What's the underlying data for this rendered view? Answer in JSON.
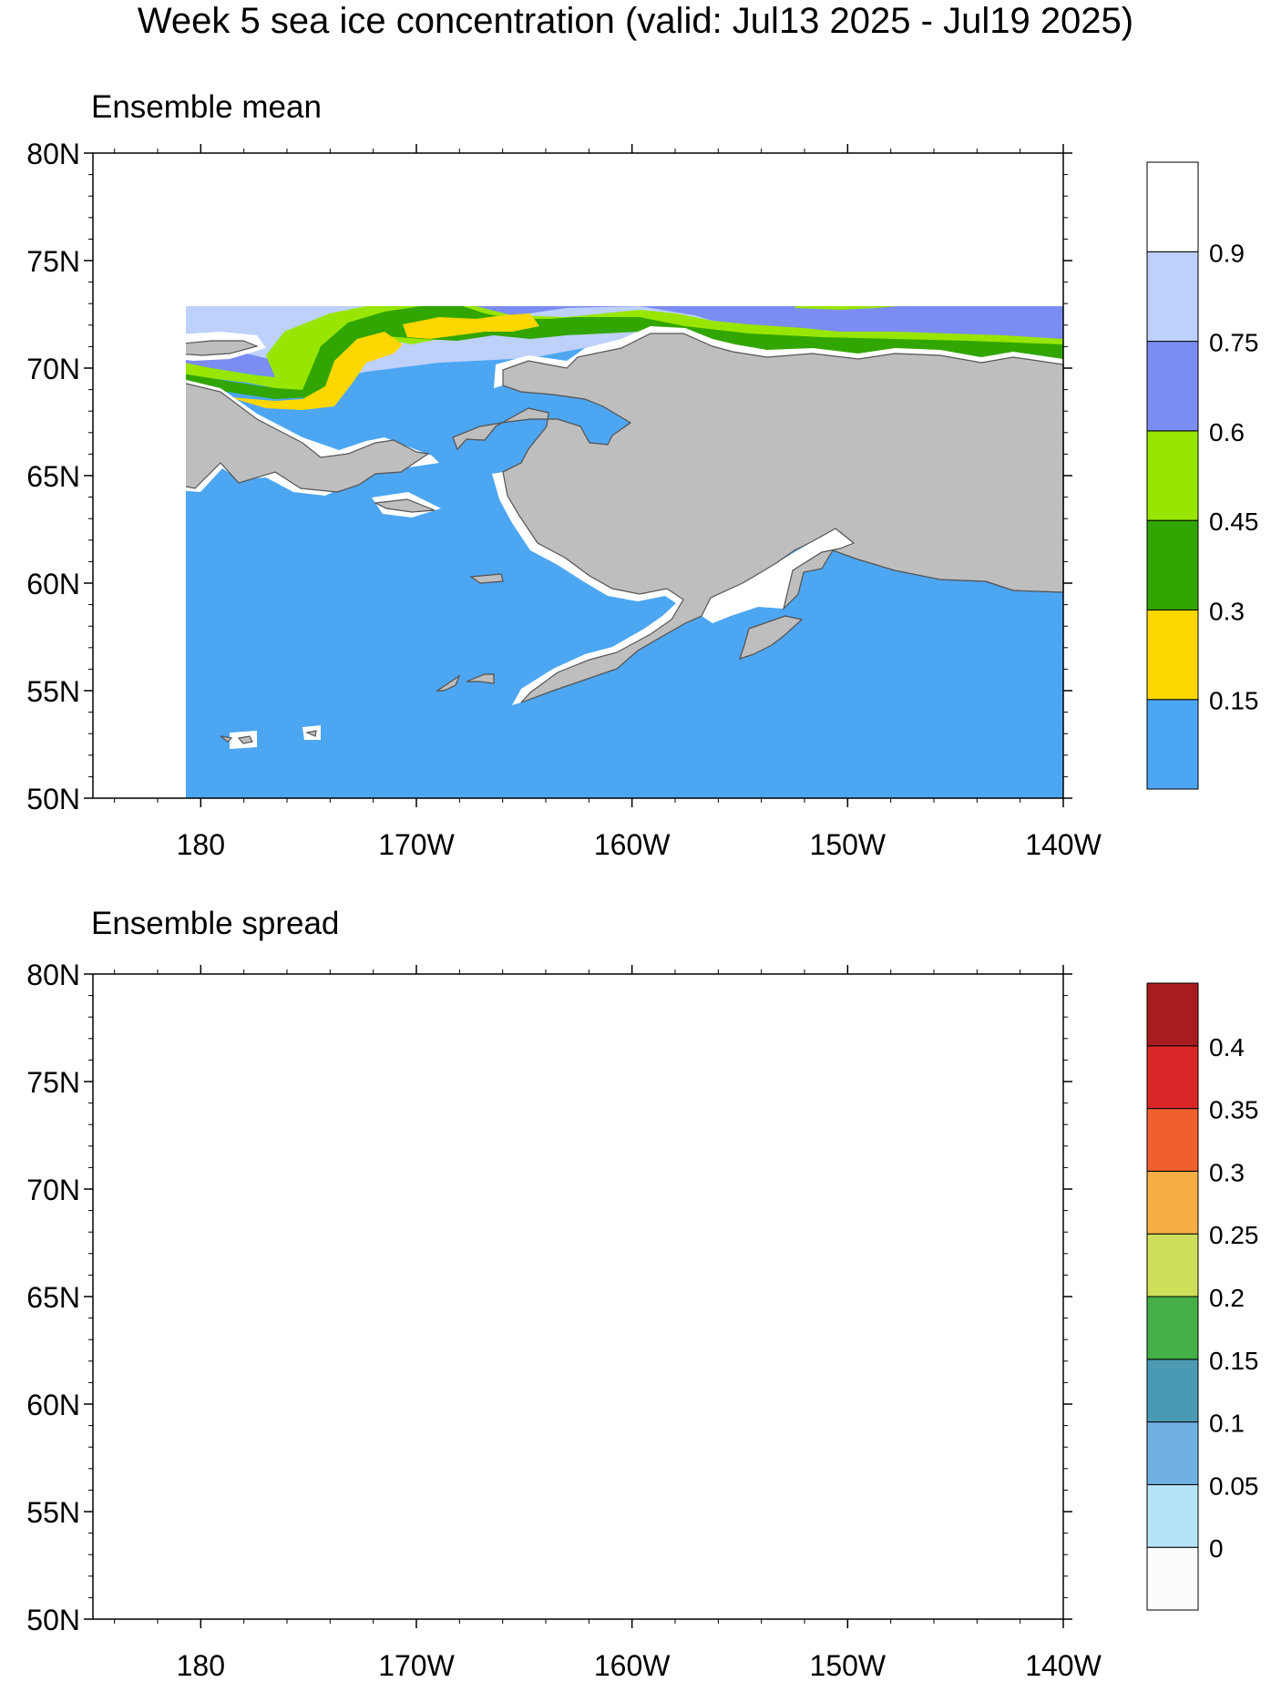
{
  "title": "Week 5 sea ice concentration (valid: Jul13 2025 - Jul19 2025)",
  "colors": {
    "land": "#bebebe",
    "land_outline": "#555555",
    "no_data": "#ffffff"
  },
  "panels": [
    {
      "title": "Ensemble mean",
      "lat_ticks": [
        "80N",
        "75N",
        "70N",
        "65N",
        "60N",
        "55N",
        "50N"
      ],
      "lon_ticks": [
        "180",
        "170W",
        "160W",
        "150W",
        "140W"
      ],
      "colorbar": {
        "labels": [
          "0.15",
          "0.3",
          "0.45",
          "0.6",
          "0.75",
          "0.9"
        ],
        "colors": [
          "#4da6f2",
          "#ffd700",
          "#32a600",
          "#98e600",
          "#7b8cf2",
          "#bdd1fb",
          "#ffffff"
        ]
      }
    },
    {
      "title": "Ensemble spread",
      "lat_ticks": [
        "80N",
        "75N",
        "70N",
        "65N",
        "60N",
        "55N",
        "50N"
      ],
      "lon_ticks": [
        "180",
        "170W",
        "160W",
        "150W",
        "140W"
      ],
      "colorbar": {
        "labels": [
          "0",
          "0.05",
          "0.1",
          "0.15",
          "0.2",
          "0.25",
          "0.3",
          "0.35",
          "0.4"
        ],
        "colors": [
          "#fafcfe",
          "#b7e3f7",
          "#6fb1e0",
          "#4a9ab3",
          "#44b047",
          "#cfde5a",
          "#f7ae47",
          "#f0602d",
          "#d92727",
          "#a81b1f"
        ]
      }
    }
  ]
}
